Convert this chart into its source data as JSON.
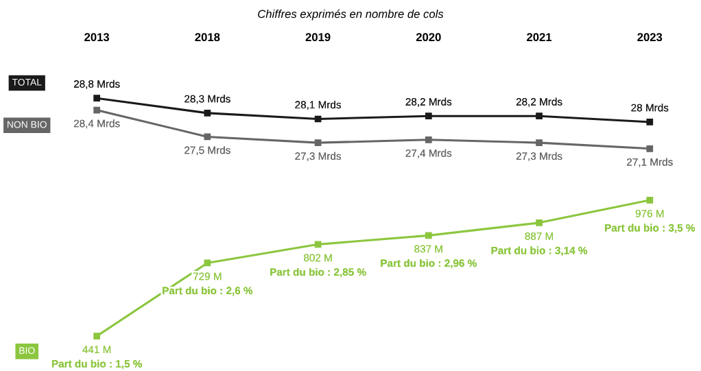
{
  "chart_data": [
    {
      "type": "line",
      "title": "Chiffres exprimés en nombre de cols",
      "categories": [
        "2013",
        "2018",
        "2019",
        "2020",
        "2021",
        "2023"
      ],
      "series": [
        {
          "name": "TOTAL",
          "color": "#1a1a1a",
          "values": [
            28.8,
            28.3,
            28.1,
            28.2,
            28.2,
            28.0
          ],
          "value_labels": [
            "28,8 Mrds",
            "28,3 Mrds",
            "28,1 Mrds",
            "28,2 Mrds",
            "28,2 Mrds",
            "28 Mrds"
          ]
        },
        {
          "name": "NON BIO",
          "color": "#666666",
          "values": [
            28.4,
            27.5,
            27.3,
            27.4,
            27.3,
            27.1
          ],
          "value_labels": [
            "28,4 Mrds",
            "27,5 Mrds",
            "27,3 Mrds",
            "27,4 Mrds",
            "27,3 Mrds",
            "27,1 Mrds"
          ]
        }
      ],
      "tick_labels": "x",
      "marker": "square",
      "line_style": "solid"
    },
    {
      "type": "line",
      "categories": [
        "2013",
        "2018",
        "2019",
        "2020",
        "2021",
        "2023"
      ],
      "series": [
        {
          "name": "BIO",
          "color": "#8cc63f",
          "values": [
            441,
            729,
            802,
            837,
            887,
            976
          ],
          "value_labels": [
            "441 M\nPart du bio : 1,5 %",
            "729 M\nPart du bio : 2,6 %",
            "802 M\nPart du bio : 2,85 %",
            "837 M\nPart du bio : 2,96 %",
            "887 M\nPart du bio : 3,14 %",
            "976 M\nPart du bio : 3,5 %"
          ]
        }
      ],
      "tick_labels": false,
      "marker": "square",
      "line_style": "solid"
    }
  ]
}
